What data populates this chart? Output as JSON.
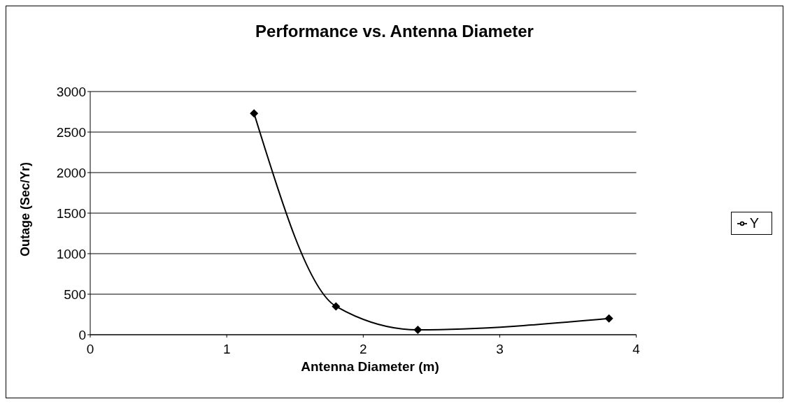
{
  "chart_data": {
    "type": "line",
    "title": "Performance vs. Antenna Diameter",
    "xlabel": "Antenna Diameter (m)",
    "ylabel": "Outage (Sec/Yr)",
    "x": [
      1.2,
      1.8,
      2.4,
      3.8
    ],
    "series": [
      {
        "name": "Y",
        "color": "#000000",
        "values": [
          2730,
          350,
          60,
          200
        ]
      }
    ],
    "xlim": [
      0,
      4
    ],
    "xticks": [
      0,
      1,
      2,
      3,
      4
    ],
    "ylim": [
      0,
      3000
    ],
    "yticks": [
      0,
      500,
      1000,
      1500,
      2000,
      2500,
      3000
    ],
    "grid": "y",
    "legend": "right",
    "marker": "diamond",
    "line_style": "solid"
  }
}
